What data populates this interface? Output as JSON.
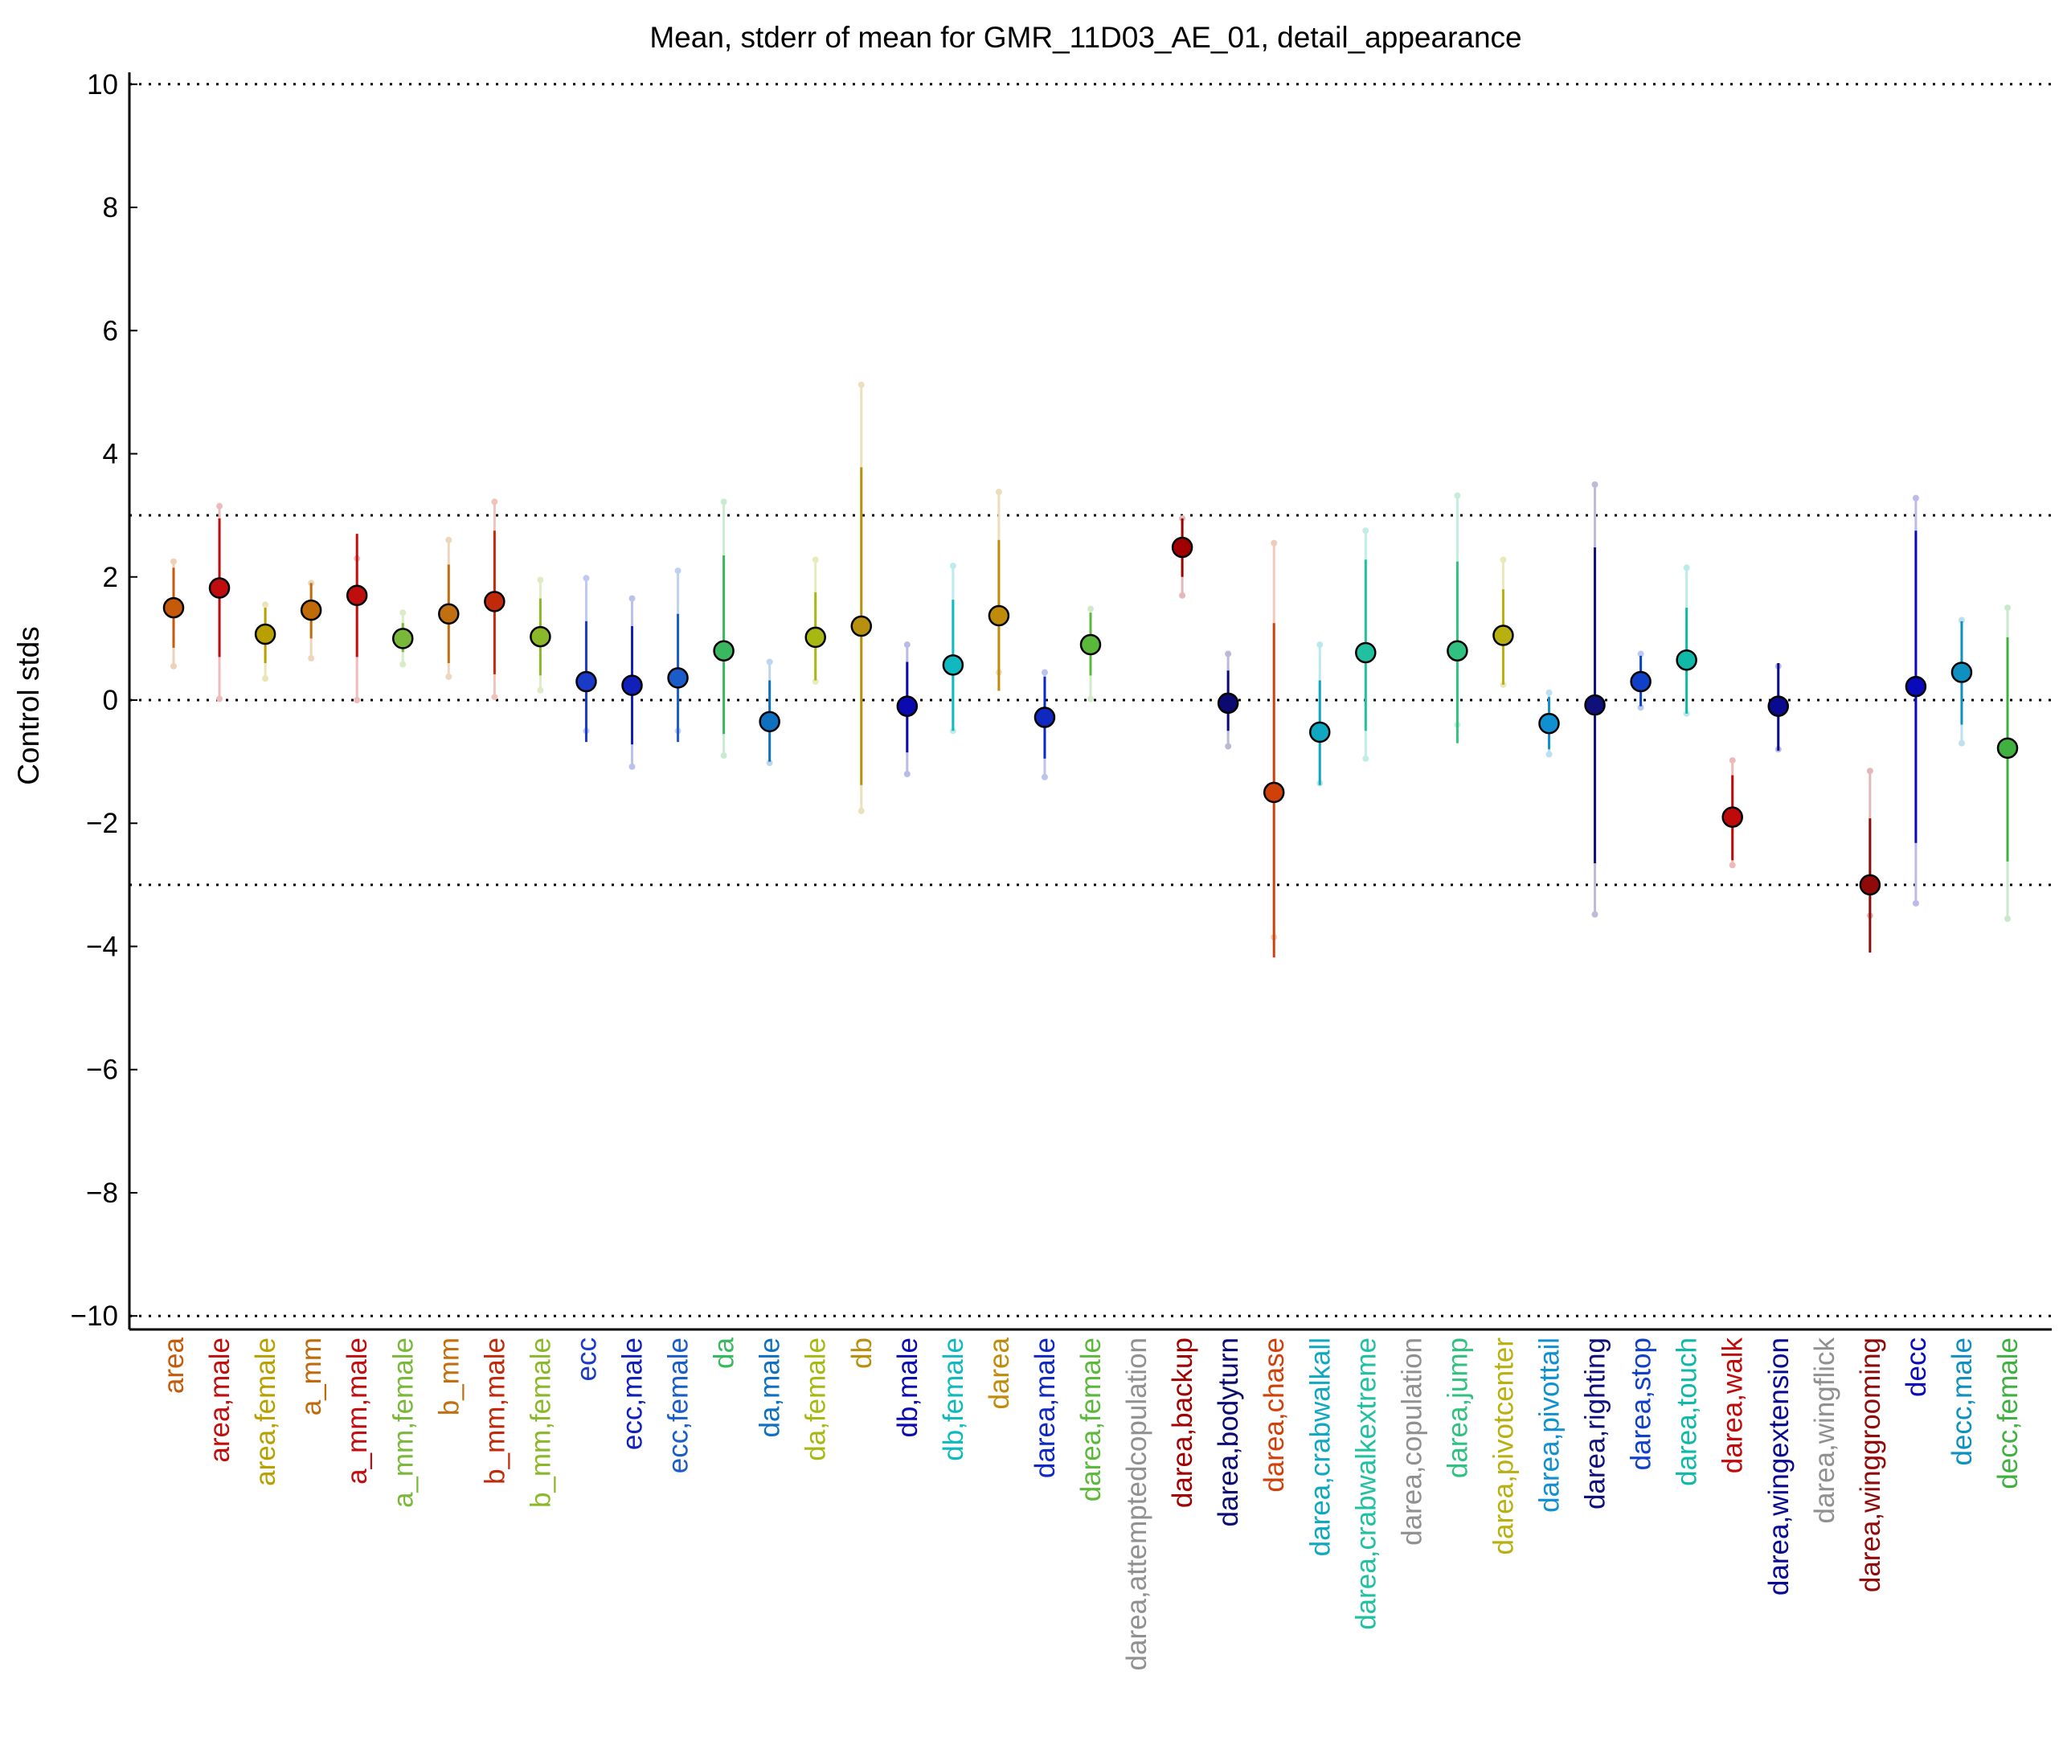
{
  "chart_data": {
    "type": "errorbar",
    "title": "Mean, stderr of mean for GMR_11D03_AE_01, detail_appearance",
    "xlabel": "",
    "ylabel": "Control stds",
    "ylim": [
      -10.2,
      10.2
    ],
    "yticks": [
      -10,
      -8,
      -6,
      -4,
      -2,
      0,
      2,
      4,
      6,
      8,
      10
    ],
    "ytick_labels": [
      "−10",
      "−8",
      "−6",
      "−4",
      "−2",
      "0",
      "2",
      "4",
      "6",
      "8",
      "10"
    ],
    "reference_lines": [
      -10,
      -3,
      0,
      3,
      10
    ],
    "grid": false,
    "points": [
      {
        "label": "area",
        "mean": 1.5,
        "sem_low": 0.85,
        "sem_high": 2.15,
        "faint_low": 0.55,
        "faint_high": 2.25,
        "color": "#c45a0a"
      },
      {
        "label": "area,male",
        "mean": 1.82,
        "sem_low": 0.7,
        "sem_high": 2.95,
        "faint_low": 0.02,
        "faint_high": 3.15,
        "color": "#c00d0d"
      },
      {
        "label": "area,female",
        "mean": 1.07,
        "sem_low": 0.6,
        "sem_high": 1.5,
        "faint_low": 0.35,
        "faint_high": 1.55,
        "color": "#b8a000"
      },
      {
        "label": "a_mm",
        "mean": 1.46,
        "sem_low": 1.0,
        "sem_high": 1.9,
        "faint_low": 0.68,
        "faint_high": 1.9,
        "color": "#c06a0a"
      },
      {
        "label": "a_mm,male",
        "mean": 1.7,
        "sem_low": 0.7,
        "sem_high": 2.7,
        "faint_low": 0.0,
        "faint_high": 2.3,
        "color": "#c00d0d"
      },
      {
        "label": "a_mm,female",
        "mean": 1.0,
        "sem_low": 0.78,
        "sem_high": 1.25,
        "faint_low": 0.58,
        "faint_high": 1.42,
        "color": "#7ab83a"
      },
      {
        "label": "b_mm",
        "mean": 1.4,
        "sem_low": 0.6,
        "sem_high": 2.2,
        "faint_low": 0.38,
        "faint_high": 2.6,
        "color": "#c07010"
      },
      {
        "label": "b_mm,male",
        "mean": 1.6,
        "sem_low": 0.42,
        "sem_high": 2.75,
        "faint_low": 0.05,
        "faint_high": 3.22,
        "color": "#c02a0a"
      },
      {
        "label": "b_mm,female",
        "mean": 1.03,
        "sem_low": 0.4,
        "sem_high": 1.65,
        "faint_low": 0.16,
        "faint_high": 1.95,
        "color": "#8ab82a"
      },
      {
        "label": "ecc",
        "mean": 0.3,
        "sem_low": -0.68,
        "sem_high": 1.28,
        "faint_low": -0.5,
        "faint_high": 1.98,
        "color": "#1a3ac8"
      },
      {
        "label": "ecc,male",
        "mean": 0.24,
        "sem_low": -0.72,
        "sem_high": 1.2,
        "faint_low": -1.08,
        "faint_high": 1.65,
        "color": "#1020b8"
      },
      {
        "label": "ecc,female",
        "mean": 0.36,
        "sem_low": -0.68,
        "sem_high": 1.4,
        "faint_low": -0.5,
        "faint_high": 2.1,
        "color": "#1a5cc8"
      },
      {
        "label": "da",
        "mean": 0.8,
        "sem_low": -0.55,
        "sem_high": 2.35,
        "faint_low": -0.9,
        "faint_high": 3.22,
        "color": "#3ab860"
      },
      {
        "label": "da,male",
        "mean": -0.35,
        "sem_low": -1.0,
        "sem_high": 0.32,
        "faint_low": -1.02,
        "faint_high": 0.62,
        "color": "#1070c0"
      },
      {
        "label": "da,female",
        "mean": 1.02,
        "sem_low": 0.32,
        "sem_high": 1.75,
        "faint_low": 0.3,
        "faint_high": 2.28,
        "color": "#a8b812"
      },
      {
        "label": "db",
        "mean": 1.2,
        "sem_low": -1.38,
        "sem_high": 3.78,
        "faint_low": -1.8,
        "faint_high": 5.12,
        "color": "#b89010"
      },
      {
        "label": "db,male",
        "mean": -0.1,
        "sem_low": -0.85,
        "sem_high": 0.62,
        "faint_low": -1.2,
        "faint_high": 0.9,
        "color": "#0a0ab0"
      },
      {
        "label": "db,female",
        "mean": 0.57,
        "sem_low": -0.5,
        "sem_high": 1.63,
        "faint_low": -0.5,
        "faint_high": 2.18,
        "color": "#10b8c0"
      },
      {
        "label": "darea",
        "mean": 1.37,
        "sem_low": 0.15,
        "sem_high": 2.6,
        "faint_low": 0.45,
        "faint_high": 3.38,
        "color": "#c08a0a"
      },
      {
        "label": "darea,male",
        "mean": -0.28,
        "sem_low": -0.95,
        "sem_high": 0.38,
        "faint_low": -1.25,
        "faint_high": 0.45,
        "color": "#1028c0"
      },
      {
        "label": "darea,female",
        "mean": 0.9,
        "sem_low": 0.4,
        "sem_high": 1.42,
        "faint_low": 0.02,
        "faint_high": 1.48,
        "color": "#5ab83a"
      },
      {
        "label": "darea,attemptedcopulation",
        "mean": null,
        "color": "#909090"
      },
      {
        "label": "darea,backup",
        "mean": 2.48,
        "sem_low": 2.0,
        "sem_high": 2.95,
        "faint_low": 1.7,
        "faint_high": 2.95,
        "color": "#a00000"
      },
      {
        "label": "darea,bodyturn",
        "mean": -0.05,
        "sem_low": -0.5,
        "sem_high": 0.48,
        "faint_low": -0.75,
        "faint_high": 0.75,
        "color": "#0a0a70"
      },
      {
        "label": "darea,chase",
        "mean": -1.5,
        "sem_low": -4.18,
        "sem_high": 1.25,
        "faint_low": -3.85,
        "faint_high": 2.55,
        "color": "#d0400a"
      },
      {
        "label": "darea,crabwalkall",
        "mean": -0.52,
        "sem_low": -1.38,
        "sem_high": 0.32,
        "faint_low": -1.35,
        "faint_high": 0.9,
        "color": "#10a8c0"
      },
      {
        "label": "darea,crabwalkextreme",
        "mean": 0.77,
        "sem_low": -0.5,
        "sem_high": 2.28,
        "faint_low": -0.95,
        "faint_high": 2.75,
        "color": "#20c0a0"
      },
      {
        "label": "darea,copulation",
        "mean": null,
        "color": "#909090"
      },
      {
        "label": "darea,jump",
        "mean": 0.8,
        "sem_low": -0.7,
        "sem_high": 2.25,
        "faint_low": -0.4,
        "faint_high": 3.32,
        "color": "#30c080"
      },
      {
        "label": "darea,pivotcenter",
        "mean": 1.05,
        "sem_low": 0.25,
        "sem_high": 1.8,
        "faint_low": 0.25,
        "faint_high": 2.28,
        "color": "#b8b010"
      },
      {
        "label": "darea,pivottail",
        "mean": -0.38,
        "sem_low": -0.8,
        "sem_high": 0.05,
        "faint_low": -0.88,
        "faint_high": 0.12,
        "color": "#1090d0"
      },
      {
        "label": "darea,righting",
        "mean": -0.08,
        "sem_low": -2.65,
        "sem_high": 2.48,
        "faint_low": -3.48,
        "faint_high": 3.5,
        "color": "#10107a"
      },
      {
        "label": "darea,stop",
        "mean": 0.3,
        "sem_low": -0.1,
        "sem_high": 0.72,
        "faint_low": -0.12,
        "faint_high": 0.75,
        "color": "#1040c8"
      },
      {
        "label": "darea,touch",
        "mean": 0.65,
        "sem_low": -0.22,
        "sem_high": 1.5,
        "faint_low": -0.22,
        "faint_high": 2.15,
        "color": "#10b8a8"
      },
      {
        "label": "darea,walk",
        "mean": -1.9,
        "sem_low": -2.6,
        "sem_high": -1.22,
        "faint_low": -2.68,
        "faint_high": -0.98,
        "color": "#c00a0a"
      },
      {
        "label": "darea,wingextension",
        "mean": -0.1,
        "sem_low": -0.82,
        "sem_high": 0.6,
        "faint_low": -0.8,
        "faint_high": 0.55,
        "color": "#0a0a90"
      },
      {
        "label": "darea,wingflick",
        "mean": null,
        "color": "#909090"
      },
      {
        "label": "darea,winggrooming",
        "mean": -3.0,
        "sem_low": -4.1,
        "sem_high": -1.92,
        "faint_low": -3.5,
        "faint_high": -1.15,
        "color": "#900a0a"
      },
      {
        "label": "decc",
        "mean": 0.22,
        "sem_low": -2.32,
        "sem_high": 2.75,
        "faint_low": -3.3,
        "faint_high": 3.28,
        "color": "#0a0ab8"
      },
      {
        "label": "decc,male",
        "mean": 0.45,
        "sem_low": -0.4,
        "sem_high": 1.28,
        "faint_low": -0.7,
        "faint_high": 1.3,
        "color": "#1090c0"
      },
      {
        "label": "decc,female",
        "mean": -0.78,
        "sem_low": -2.62,
        "sem_high": 1.02,
        "faint_low": -3.55,
        "faint_high": 1.5,
        "color": "#40b040"
      }
    ]
  }
}
